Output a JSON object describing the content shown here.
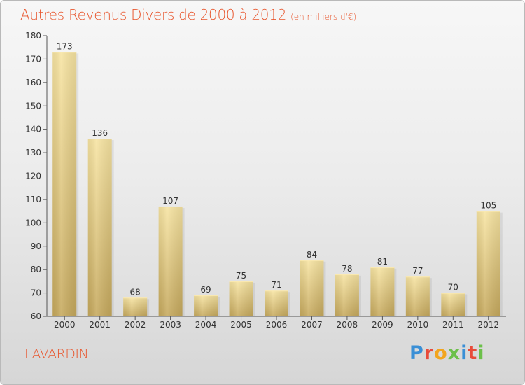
{
  "header": {
    "title": "Autres Revenus Divers de 2000 à 2012",
    "subtitle": "(en milliers d'€)"
  },
  "footer": {
    "commune": "LAVARDIN",
    "logo_letters": [
      "P",
      "r",
      "o",
      "x",
      "i",
      "t",
      "i"
    ],
    "logo_colors": [
      "#3a8fd6",
      "#e84b3a",
      "#f2a51e",
      "#6cc04a",
      "#3a8fd6",
      "#e84b3a",
      "#6cc04a"
    ]
  },
  "chart_data": {
    "type": "bar",
    "title": "Autres Revenus Divers de 2000 à 2012",
    "subtitle": "(en milliers d'€)",
    "categories": [
      "2000",
      "2001",
      "2002",
      "2003",
      "2004",
      "2005",
      "2006",
      "2007",
      "2008",
      "2009",
      "2010",
      "2011",
      "2012"
    ],
    "values": [
      173,
      136,
      68,
      107,
      69,
      75,
      71,
      84,
      78,
      81,
      77,
      70,
      105
    ],
    "ylim": [
      60,
      180
    ],
    "yticks": [
      60,
      70,
      80,
      90,
      100,
      110,
      120,
      130,
      140,
      150,
      160,
      170,
      180
    ],
    "grid": false,
    "colors": {
      "bar_light": "#f6e2a0",
      "bar_dark": "#c9ab5e",
      "title": "#e8572f"
    }
  }
}
